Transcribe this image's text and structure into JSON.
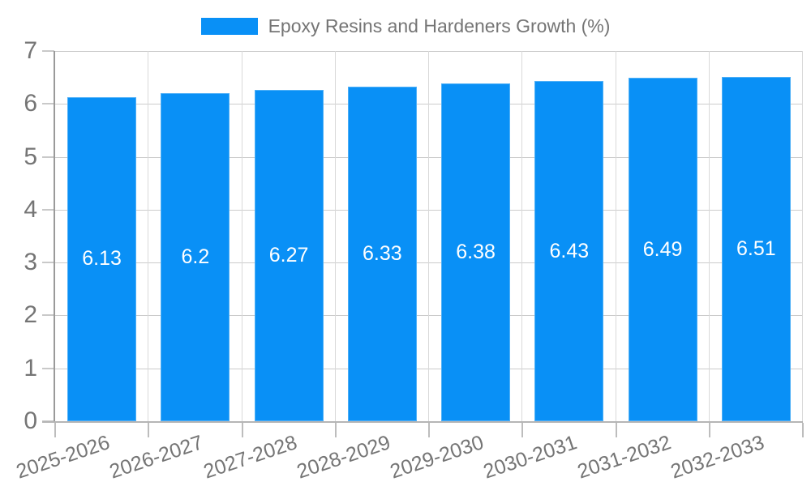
{
  "chart_data": {
    "type": "bar",
    "categories": [
      "2025-2026",
      "2026-2027",
      "2027-2028",
      "2028-2029",
      "2029-2030",
      "2030-2031",
      "2031-2032",
      "2032-2033"
    ],
    "series": [
      {
        "name": "Epoxy Resins and Hardeners Growth (%)",
        "values": [
          6.13,
          6.2,
          6.27,
          6.33,
          6.38,
          6.43,
          6.49,
          6.51
        ],
        "value_labels": [
          "6.13",
          "6.2",
          "6.27",
          "6.33",
          "6.38",
          "6.43",
          "6.49",
          "6.51"
        ]
      }
    ],
    "legend": {
      "position": "top",
      "label": "Epoxy Resins and Hardeners Growth (%)"
    },
    "xlabel": "",
    "ylabel": "",
    "ylim": [
      0,
      7
    ],
    "yticks": [
      "0",
      "1",
      "2",
      "3",
      "4",
      "5",
      "6",
      "7"
    ],
    "grid": true,
    "colors": {
      "bar": "#0990f6",
      "bar_border": "#4fb0f7",
      "bar_label": "#ffffff",
      "axis_text": "#757575",
      "gridline": "#cbcbcb",
      "axis_line": "#9a9a9a",
      "background": "#ffffff"
    }
  }
}
